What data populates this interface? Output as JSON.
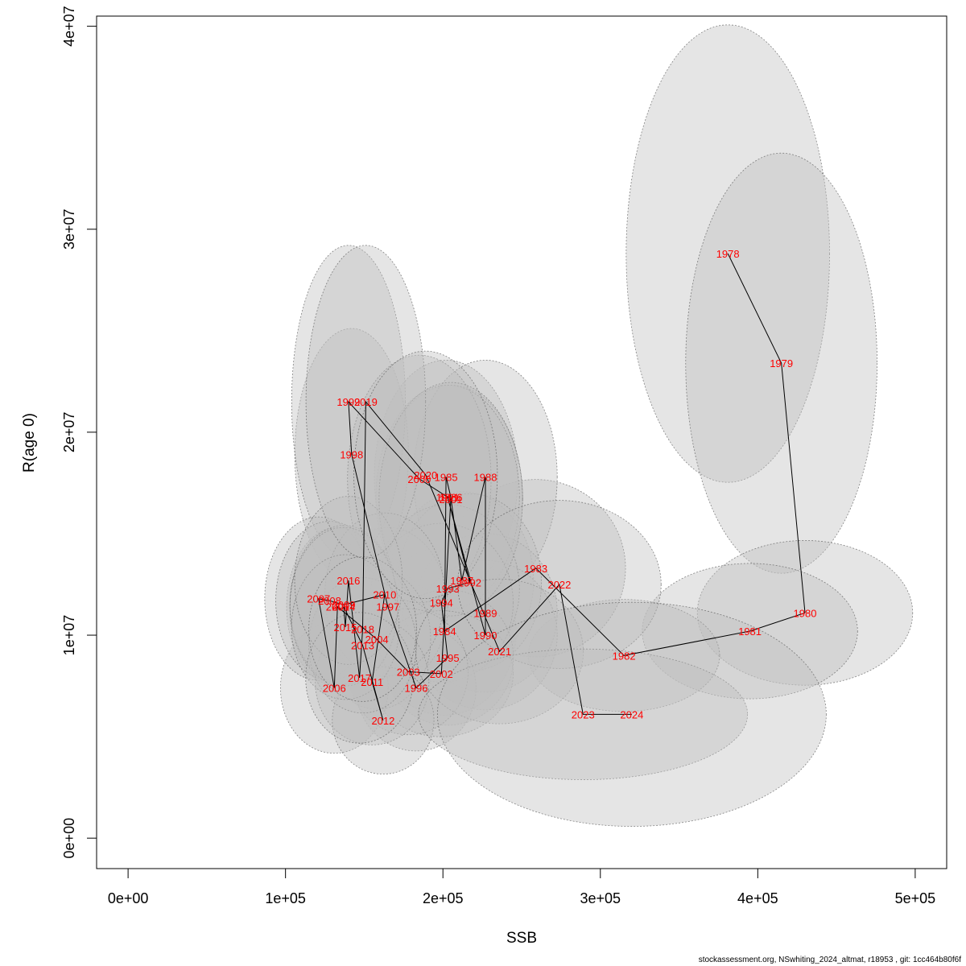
{
  "chart_data": {
    "type": "scatter",
    "title": "",
    "xlabel": "SSB",
    "ylabel": "R(age 0)",
    "xlim": [
      -20000,
      520000
    ],
    "ylim": [
      -1500000,
      40500000
    ],
    "x_ticks": [
      0,
      100000,
      200000,
      300000,
      400000,
      500000
    ],
    "x_tick_labels": [
      "0e+00",
      "1e+05",
      "2e+05",
      "3e+05",
      "4e+05",
      "5e+05"
    ],
    "y_ticks": [
      0,
      10000000,
      20000000,
      30000000,
      40000000
    ],
    "y_tick_labels": [
      "0e+00",
      "1e+07",
      "2e+07",
      "3e+07",
      "4e+07"
    ],
    "colors": {
      "labels": "#ff0000",
      "line": "#000000",
      "ellipse_fill": "#bebebe",
      "ellipse_stroke": "#555555"
    },
    "points": [
      {
        "year": "1978",
        "ssb": 381000,
        "rec": 28800000,
        "sx": 34000,
        "sy": 9800000
      },
      {
        "year": "1979",
        "ssb": 415000,
        "rec": 23400000,
        "sx": 32000,
        "sy": 9000000
      },
      {
        "year": "1980",
        "ssb": 430000,
        "rec": 11100000,
        "sx": 36000,
        "sy": 3100000
      },
      {
        "year": "1981",
        "ssb": 395000,
        "rec": 10200000,
        "sx": 36000,
        "sy": 2900000
      },
      {
        "year": "1982",
        "ssb": 315000,
        "rec": 9000000,
        "sx": 32000,
        "sy": 2400000
      },
      {
        "year": "1983",
        "ssb": 259000,
        "rec": 13300000,
        "sx": 30000,
        "sy": 3800000
      },
      {
        "year": "1984",
        "ssb": 201000,
        "rec": 10200000,
        "sx": 24000,
        "sy": 3600000
      },
      {
        "year": "1985",
        "ssb": 202000,
        "rec": 17800000,
        "sx": 24000,
        "sy": 5000000
      },
      {
        "year": "1986",
        "ssb": 205000,
        "rec": 16800000,
        "sx": 24000,
        "sy": 4800000
      },
      {
        "year": "1987",
        "ssb": 212000,
        "rec": 12700000,
        "sx": 24000,
        "sy": 3800000
      },
      {
        "year": "1988",
        "ssb": 227000,
        "rec": 17800000,
        "sx": 24000,
        "sy": 5000000
      },
      {
        "year": "1989",
        "ssb": 227000,
        "rec": 11100000,
        "sx": 24000,
        "sy": 3400000
      },
      {
        "year": "1990",
        "ssb": 227000,
        "rec": 10000000,
        "sx": 24000,
        "sy": 3200000
      },
      {
        "year": "1991",
        "ssb": 203000,
        "rec": 16800000,
        "sx": 24000,
        "sy": 4800000
      },
      {
        "year": "1992",
        "ssb": 217000,
        "rec": 12600000,
        "sx": 24000,
        "sy": 3800000
      },
      {
        "year": "1993",
        "ssb": 203000,
        "rec": 12300000,
        "sx": 24000,
        "sy": 3600000
      },
      {
        "year": "1994",
        "ssb": 199000,
        "rec": 11600000,
        "sx": 24000,
        "sy": 3400000
      },
      {
        "year": "1995",
        "ssb": 203000,
        "rec": 8900000,
        "sx": 22000,
        "sy": 2900000
      },
      {
        "year": "1996",
        "ssb": 183000,
        "rec": 7400000,
        "sx": 20000,
        "sy": 2700000
      },
      {
        "year": "1997",
        "ssb": 165000,
        "rec": 11400000,
        "sx": 20000,
        "sy": 3400000
      },
      {
        "year": "1998",
        "ssb": 142000,
        "rec": 18900000,
        "sx": 19000,
        "sy": 5400000
      },
      {
        "year": "1999",
        "ssb": 140000,
        "rec": 21500000,
        "sx": 19000,
        "sy": 6700000
      },
      {
        "year": "2000",
        "ssb": 185000,
        "rec": 17700000,
        "sx": 24000,
        "sy": 5300000
      },
      {
        "year": "2001",
        "ssb": 205000,
        "rec": 16700000,
        "sx": 24000,
        "sy": 5000000
      },
      {
        "year": "2002",
        "ssb": 199000,
        "rec": 8100000,
        "sx": 24000,
        "sy": 2700000
      },
      {
        "year": "2003",
        "ssb": 178000,
        "rec": 8200000,
        "sx": 20000,
        "sy": 2700000
      },
      {
        "year": "2004",
        "ssb": 158000,
        "rec": 9800000,
        "sx": 18000,
        "sy": 3000000
      },
      {
        "year": "2005",
        "ssb": 133000,
        "rec": 11400000,
        "sx": 17000,
        "sy": 3400000
      },
      {
        "year": "2006",
        "ssb": 131000,
        "rec": 7400000,
        "sx": 18000,
        "sy": 2800000
      },
      {
        "year": "2007",
        "ssb": 121000,
        "rec": 11800000,
        "sx": 18000,
        "sy": 3500000
      },
      {
        "year": "2008",
        "ssb": 128000,
        "rec": 11700000,
        "sx": 18000,
        "sy": 3400000
      },
      {
        "year": "2009",
        "ssb": 137000,
        "rec": 11500000,
        "sx": 18000,
        "sy": 3400000
      },
      {
        "year": "2010",
        "ssb": 163000,
        "rec": 12000000,
        "sx": 20000,
        "sy": 3500000
      },
      {
        "year": "2011",
        "ssb": 155000,
        "rec": 7700000,
        "sx": 19000,
        "sy": 2700000
      },
      {
        "year": "2012",
        "ssb": 162000,
        "rec": 5800000,
        "sx": 17000,
        "sy": 2300000
      },
      {
        "year": "2013",
        "ssb": 149000,
        "rec": 9500000,
        "sx": 18000,
        "sy": 2900000
      },
      {
        "year": "2014",
        "ssb": 137000,
        "rec": 11400000,
        "sx": 18000,
        "sy": 3400000
      },
      {
        "year": "2015",
        "ssb": 138000,
        "rec": 10400000,
        "sx": 18000,
        "sy": 3100000
      },
      {
        "year": "2016",
        "ssb": 140000,
        "rec": 12700000,
        "sx": 18000,
        "sy": 3600000
      },
      {
        "year": "2017",
        "ssb": 147000,
        "rec": 7900000,
        "sx": 18000,
        "sy": 2800000
      },
      {
        "year": "2018",
        "ssb": 149000,
        "rec": 10300000,
        "sx": 18000,
        "sy": 3100000
      },
      {
        "year": "2019",
        "ssb": 151000,
        "rec": 21500000,
        "sx": 20000,
        "sy": 6700000
      },
      {
        "year": "2020",
        "ssb": 189000,
        "rec": 17900000,
        "sx": 24000,
        "sy": 5300000
      },
      {
        "year": "2021",
        "ssb": 236000,
        "rec": 9200000,
        "sx": 28000,
        "sy": 3100000
      },
      {
        "year": "2022",
        "ssb": 274000,
        "rec": 12500000,
        "sx": 34000,
        "sy": 3600000
      },
      {
        "year": "2023",
        "ssb": 289000,
        "rec": 6100000,
        "sx": 55000,
        "sy": 2800000
      },
      {
        "year": "2024",
        "ssb": 320000,
        "rec": 6100000,
        "sx": 65000,
        "sy": 4800000
      }
    ]
  },
  "footer": "stockassessment.org, NSwhiting_2024_altmat, r18953 , git: 1cc464b80f6f"
}
